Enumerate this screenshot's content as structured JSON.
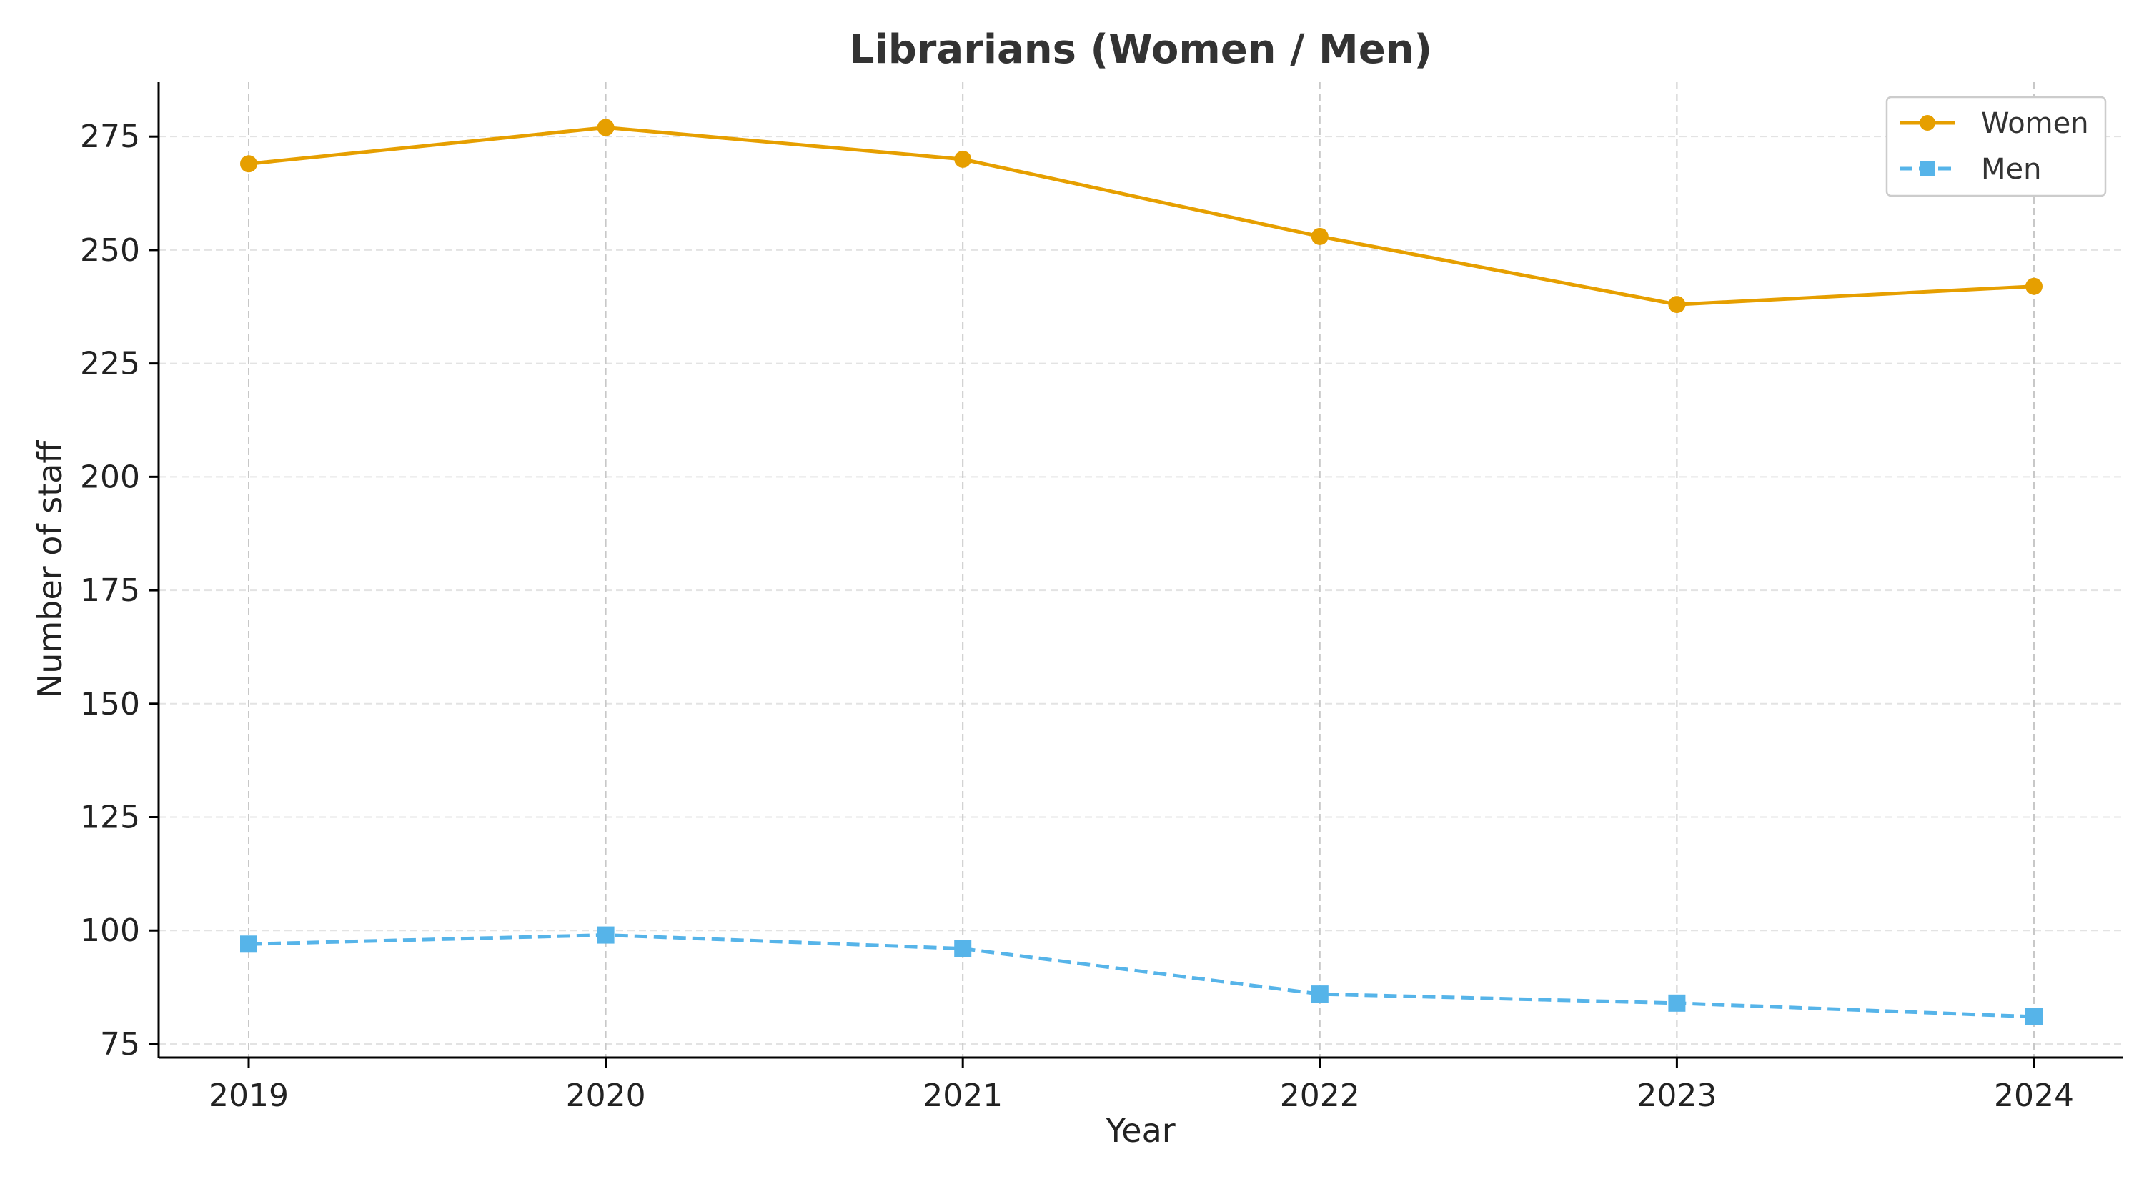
{
  "chart_data": {
    "type": "line",
    "title": "Librarians (Women / Men)",
    "xlabel": "Year",
    "ylabel": "Number of staff",
    "categories": [
      "2019",
      "2020",
      "2021",
      "2022",
      "2023",
      "2024"
    ],
    "series": [
      {
        "name": "Women",
        "values": [
          269,
          277,
          270,
          253,
          238,
          242
        ],
        "color": "#E69F00",
        "marker": "circle",
        "line_style": "solid"
      },
      {
        "name": "Men",
        "values": [
          97,
          99,
          96,
          86,
          84,
          81
        ],
        "color": "#56B4E9",
        "marker": "square",
        "line_style": "dashed"
      }
    ],
    "ylim": [
      72,
      287
    ],
    "yticks": [
      75,
      100,
      125,
      150,
      175,
      200,
      225,
      250,
      275
    ],
    "grid": true,
    "legend_position": "top-right"
  }
}
